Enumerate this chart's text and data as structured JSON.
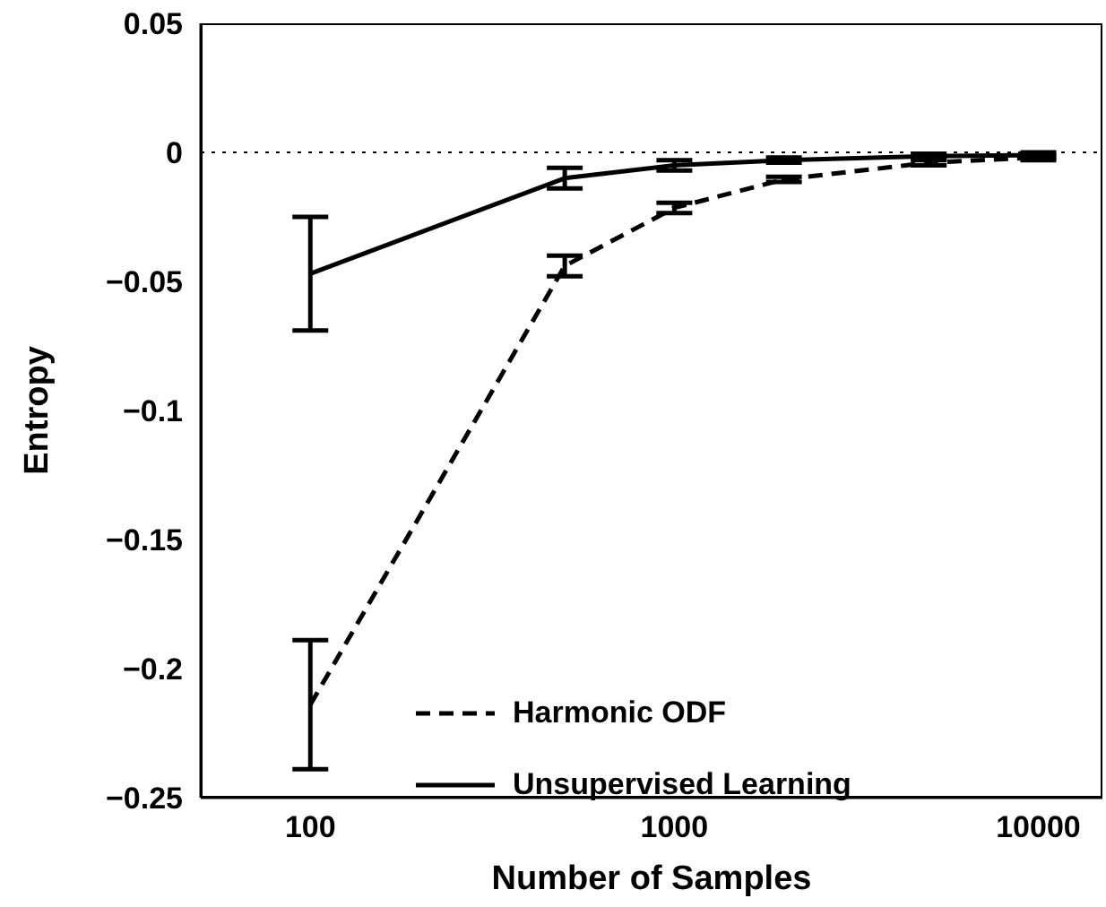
{
  "chart_data": {
    "type": "line",
    "xlabel": "Number of Samples",
    "ylabel": "Entropy",
    "x": [
      100,
      500,
      1000,
      2000,
      5000,
      10000
    ],
    "series": [
      {
        "name": "Harmonic ODF",
        "color": "#000000",
        "line_style": "dashed",
        "values": [
          -0.214,
          -0.044,
          -0.0215,
          -0.0105,
          -0.004,
          -0.002
        ],
        "errors": [
          0.025,
          0.004,
          0.002,
          0.001,
          0.001,
          0.001
        ]
      },
      {
        "name": "Unsupervised Learning",
        "color": "#000000",
        "line_style": "solid",
        "values": [
          -0.047,
          -0.01,
          -0.005,
          -0.003,
          -0.0015,
          -0.001
        ],
        "errors": [
          0.022,
          0.004,
          0.002,
          0.001,
          0.001,
          0.001
        ]
      }
    ],
    "log": "x",
    "xlim": [
      50,
      15000
    ],
    "xticks": [
      100,
      1000,
      10000
    ],
    "ylim": [
      -0.25,
      0.05
    ],
    "yticks": [
      {
        "value": -0.25,
        "label": "−0.25"
      },
      {
        "value": -0.2,
        "label": "−0.2"
      },
      {
        "value": -0.15,
        "label": "−0.15"
      },
      {
        "value": -0.1,
        "label": "−0.1"
      },
      {
        "value": -0.05,
        "label": "−0.05"
      },
      0,
      0.05
    ],
    "ref_lines": [
      {
        "axis": "y",
        "value": 0,
        "line_style": "dotted"
      }
    ],
    "grid": false,
    "legend": "bottom",
    "marker": "none"
  }
}
